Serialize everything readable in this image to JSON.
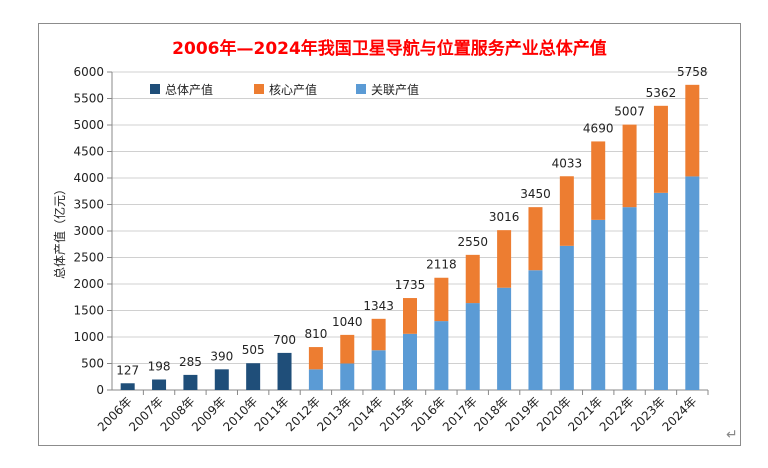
{
  "chart_data": {
    "type": "bar",
    "stacked": true,
    "title": "2006年—2024年我国卫星导航与位置服务产业总体产值",
    "xlabel": "",
    "ylabel": "总体产值（亿元）",
    "ylim": [
      0,
      6000
    ],
    "ytick_step": 500,
    "grid": true,
    "legend_position": "top-left",
    "categories": [
      "2006年",
      "2007年",
      "2008年",
      "2009年",
      "2010年",
      "2011年",
      "2012年",
      "2013年",
      "2014年",
      "2015年",
      "2016年",
      "2017年",
      "2018年",
      "2019年",
      "2020年",
      "2021年",
      "2022年",
      "2023年",
      "2024年"
    ],
    "series": [
      {
        "name": "总体产值",
        "color": "#1f4e79",
        "values": [
          127,
          198,
          285,
          390,
          505,
          700,
          null,
          null,
          null,
          null,
          null,
          null,
          null,
          null,
          null,
          null,
          null,
          null,
          null
        ]
      },
      {
        "name": "核心产值",
        "color": "#ed7d31",
        "values": [
          null,
          null,
          null,
          null,
          null,
          null,
          420,
          540,
          593,
          675,
          818,
          910,
          1086,
          1190,
          1313,
          1480,
          1557,
          1642,
          1728
        ]
      },
      {
        "name": "关联产值",
        "color": "#5b9bd5",
        "values": [
          null,
          null,
          null,
          null,
          null,
          null,
          390,
          500,
          750,
          1060,
          1300,
          1640,
          1930,
          2260,
          2720,
          3210,
          3450,
          3720,
          4030
        ]
      }
    ],
    "data_labels": [
      "127",
      "198",
      "285",
      "390",
      "505",
      "700",
      "810",
      "1040",
      "1343",
      "1735",
      "2118",
      "2550",
      "3016",
      "3450",
      "4033",
      "4690",
      "5007",
      "5362",
      "5758"
    ]
  },
  "return_mark": "↵"
}
